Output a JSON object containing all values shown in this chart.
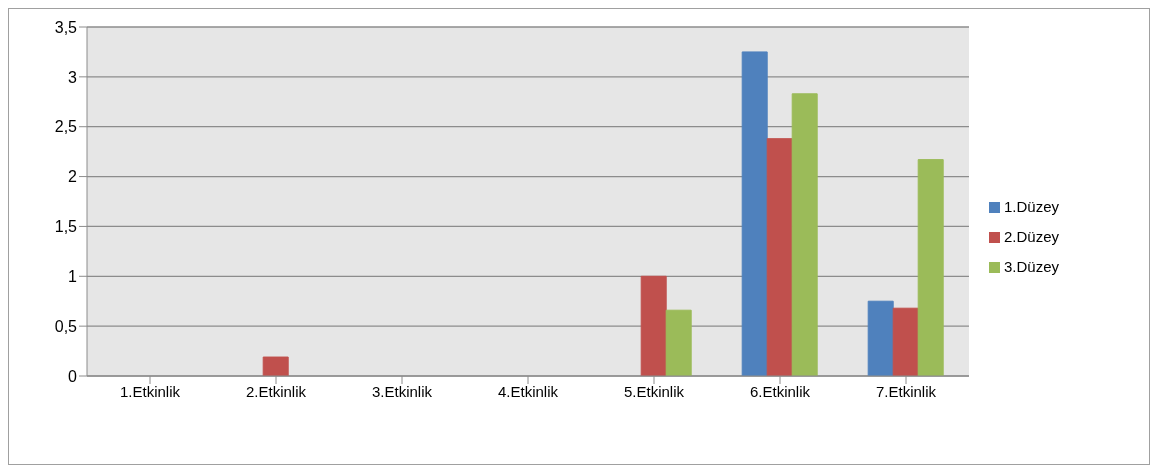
{
  "chart_data": {
    "type": "bar",
    "categories": [
      "1.Etkinlik",
      "2.Etkinlik",
      "3.Etkinlik",
      "4.Etkinlik",
      "5.Etkinlik",
      "6.Etkinlik",
      "7.Etkinlik"
    ],
    "series": [
      {
        "name": "1.Düzey",
        "color": "#4f81bd",
        "values": [
          0,
          0,
          0,
          0,
          0,
          3.25,
          0.75
        ]
      },
      {
        "name": "2.Düzey",
        "color": "#c0504d",
        "values": [
          0,
          0.19,
          0,
          0,
          1,
          2.38,
          0.68
        ]
      },
      {
        "name": "3.Düzey",
        "color": "#9bbb59",
        "values": [
          0,
          0,
          0,
          0,
          0.66,
          2.83,
          2.17
        ]
      }
    ],
    "ylim": [
      0,
      3.5
    ],
    "yticks": [
      0,
      {
        "value": 0.5,
        "label": "0,5"
      },
      1,
      {
        "value": 1.5,
        "label": "1,5"
      },
      2,
      {
        "value": 2.5,
        "label": "2,5"
      },
      3,
      {
        "value": 3.5,
        "label": "3,5"
      }
    ],
    "grid": "y",
    "legend": "right"
  }
}
